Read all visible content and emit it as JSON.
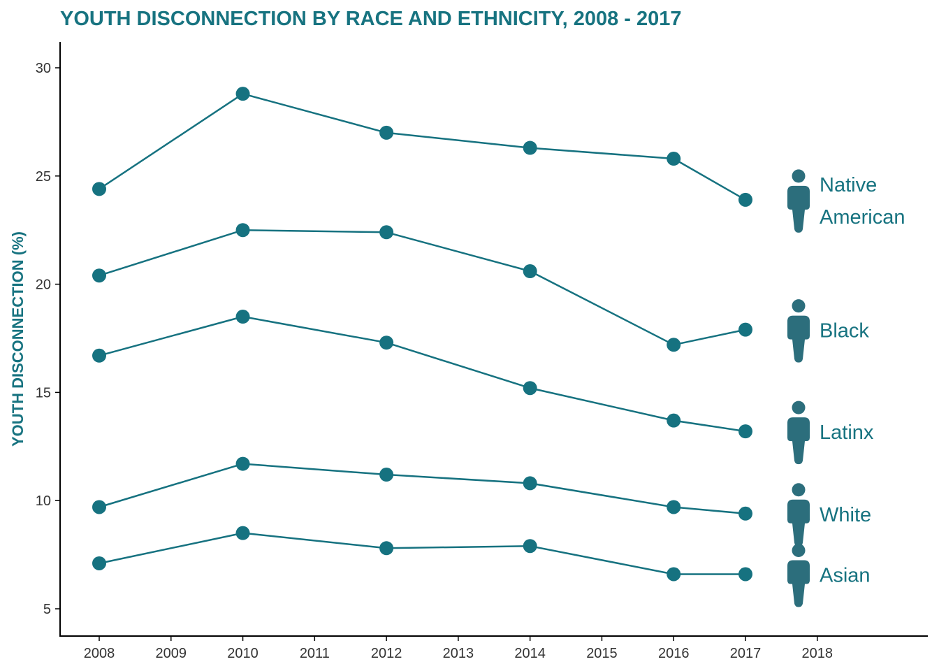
{
  "chart_data": {
    "type": "line",
    "title": "YOUTH DISCONNECTION BY RACE AND ETHNICITY, 2008 - 2017",
    "xlabel": "",
    "ylabel": "YOUTH DISCONNECTION (%)",
    "x": [
      2008,
      2010,
      2012,
      2014,
      2016,
      2017
    ],
    "x_ticks": [
      "2008",
      "2009",
      "2010",
      "2011",
      "2012",
      "2013",
      "2014",
      "2015",
      "2016",
      "2017",
      "2018"
    ],
    "y_ticks": [
      "5",
      "10",
      "15",
      "20",
      "25",
      "30"
    ],
    "xlim": [
      2007.45,
      2019.5
    ],
    "ylim": [
      3.8,
      31.2
    ],
    "grid": false,
    "legend": "none",
    "series": [
      {
        "name": "Native American",
        "label_lines": [
          "Native",
          "American"
        ],
        "values": [
          24.4,
          28.8,
          27.0,
          26.3,
          25.8,
          23.9
        ]
      },
      {
        "name": "Black",
        "label_lines": [
          "Black"
        ],
        "values": [
          20.4,
          22.5,
          22.4,
          20.6,
          17.2,
          17.9
        ]
      },
      {
        "name": "Latinx",
        "label_lines": [
          "Latinx"
        ],
        "values": [
          16.7,
          18.5,
          17.3,
          15.2,
          13.7,
          13.2
        ]
      },
      {
        "name": "White",
        "label_lines": [
          "White"
        ],
        "values": [
          9.7,
          11.7,
          11.2,
          10.8,
          9.7,
          9.4
        ]
      },
      {
        "name": "Asian",
        "label_lines": [
          "Asian"
        ],
        "values": [
          7.1,
          8.5,
          7.8,
          7.9,
          6.6,
          6.6
        ]
      }
    ],
    "colors": {
      "title": "#177380",
      "line": "#167280",
      "icon": "#2c6e7c",
      "axis": "#000000",
      "tick_text": "#333333"
    },
    "icon": "person-icon"
  }
}
